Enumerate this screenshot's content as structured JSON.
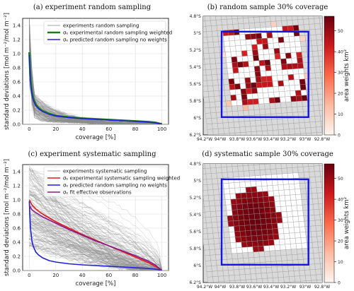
{
  "panels": {
    "a": {
      "title": "(a) experiment random sampling",
      "xlabel": "coverage [%]",
      "ylabel": "standard deviations [mol m⁻²/mol m⁻²]",
      "xticks": [
        "0",
        "20",
        "40",
        "60",
        "80",
        "100"
      ],
      "yticks": [
        "0.0",
        "0.2",
        "0.4",
        "0.6",
        "0.8",
        "1.0",
        "1.2",
        "1.4"
      ],
      "legend": [
        "experiments random sampling",
        "σₑ experimental random sampling weighted",
        "σₑ predicted random sampling no weights"
      ]
    },
    "b": {
      "title": "(b) random sample 30% coverage",
      "xticks": [
        "94.2°W",
        "94°W",
        "93.8°W",
        "93.6°W",
        "93.4°W",
        "93.2°W",
        "93°W",
        "92.8°W"
      ],
      "yticks": [
        "4.8°S",
        "5°S",
        "5.2°S",
        "5.4°S",
        "5.6°S",
        "5.8°S",
        "6°S",
        "6.2°S"
      ],
      "colorbar_label": "area weights km²",
      "colorbar_ticks": [
        "0",
        "10",
        "20",
        "30",
        "40",
        "50"
      ]
    },
    "c": {
      "title": "(c) experiment systematic sampling",
      "xlabel": "coverage [%]",
      "ylabel": "standard deviations [mol m⁻²/mol m⁻²]",
      "xticks": [
        "0",
        "20",
        "40",
        "60",
        "80",
        "100"
      ],
      "yticks": [
        "0.0",
        "0.2",
        "0.4",
        "0.6",
        "0.8",
        "1.0",
        "1.2",
        "1.4"
      ],
      "legend": [
        "experiments systematic sampling",
        "σₑ experimental systematic sampling weighted",
        "σₑ predicted random sampling no weights",
        "σₑ fit effective observations"
      ]
    },
    "d": {
      "title": "(d) systematic sample 30% coverage",
      "xticks": [
        "94.2°W",
        "94°W",
        "93.8°W",
        "93.6°W",
        "93.4°W",
        "93.2°W",
        "93°W",
        "92.8°W"
      ],
      "yticks": [
        "4.8°S",
        "5°S",
        "5.2°S",
        "5.4°S",
        "5.6°S",
        "5.8°S",
        "6°S",
        "6.2°S"
      ],
      "colorbar_label": "area weights km²",
      "colorbar_ticks": [
        "0",
        "10",
        "20",
        "30",
        "40",
        "50"
      ]
    }
  },
  "colors": {
    "experiments": "#8c8c8c",
    "weighted_random": "#1f7a1f",
    "weighted_systematic": "#e41a1c",
    "predicted": "#1f1fe0",
    "fit": "#8b1a8b",
    "study_area": "#1414e6",
    "grid": "#9a9a9a",
    "map_bg": "#d9d9d9"
  },
  "chart_data": [
    {
      "type": "line",
      "title": "(a) experiment random sampling",
      "xlabel": "coverage [%]",
      "ylabel": "standard deviations [mol m⁻²/mol m⁻²]",
      "xlim": [
        -5,
        105
      ],
      "ylim": [
        0,
        1.5
      ],
      "grid": true,
      "legend_position": "top-right",
      "series": [
        {
          "name": "σₑ experimental random sampling weighted",
          "x": [
            0,
            0.5,
            1,
            2,
            3,
            5,
            7,
            10,
            15,
            20,
            30,
            40,
            50,
            60,
            70,
            80,
            90,
            95,
            98,
            100
          ],
          "y": [
            1.02,
            0.8,
            0.62,
            0.45,
            0.37,
            0.28,
            0.23,
            0.19,
            0.15,
            0.12,
            0.1,
            0.085,
            0.075,
            0.065,
            0.055,
            0.045,
            0.035,
            0.025,
            0.012,
            0.0
          ]
        },
        {
          "name": "σₑ predicted random sampling no weights",
          "x": [
            0,
            0.5,
            1,
            2,
            3,
            5,
            7,
            10,
            15,
            20,
            30,
            40,
            50,
            60,
            70,
            80,
            90,
            95,
            98,
            100
          ],
          "y": [
            0.98,
            0.75,
            0.58,
            0.42,
            0.34,
            0.26,
            0.22,
            0.18,
            0.14,
            0.12,
            0.095,
            0.08,
            0.07,
            0.06,
            0.05,
            0.04,
            0.03,
            0.02,
            0.01,
            0.0
          ]
        }
      ]
    },
    {
      "type": "line",
      "title": "(c) experiment systematic sampling",
      "xlabel": "coverage [%]",
      "ylabel": "standard deviations [mol m⁻²/mol m⁻²]",
      "xlim": [
        -5,
        105
      ],
      "ylim": [
        0,
        1.5
      ],
      "grid": true,
      "legend_position": "top-right",
      "series": [
        {
          "name": "σₑ experimental systematic sampling weighted",
          "x": [
            0,
            2,
            5,
            10,
            20,
            30,
            40,
            50,
            60,
            70,
            80,
            90,
            95,
            100
          ],
          "y": [
            1.0,
            0.93,
            0.87,
            0.8,
            0.69,
            0.6,
            0.51,
            0.43,
            0.35,
            0.27,
            0.19,
            0.11,
            0.06,
            0.0
          ]
        },
        {
          "name": "σₑ predicted random sampling no weights",
          "x": [
            0,
            0.5,
            1,
            2,
            3,
            5,
            7,
            10,
            15,
            20,
            30,
            40,
            50,
            60,
            70,
            80,
            90,
            95,
            98,
            100
          ],
          "y": [
            0.98,
            0.75,
            0.58,
            0.42,
            0.34,
            0.26,
            0.22,
            0.18,
            0.14,
            0.12,
            0.095,
            0.08,
            0.07,
            0.06,
            0.05,
            0.04,
            0.03,
            0.02,
            0.01,
            0.0
          ]
        },
        {
          "name": "σₑ fit effective observations",
          "x": [
            0,
            2,
            5,
            10,
            20,
            30,
            40,
            50,
            60,
            70,
            80,
            90,
            95,
            100
          ],
          "y": [
            0.92,
            0.86,
            0.82,
            0.76,
            0.67,
            0.58,
            0.5,
            0.42,
            0.35,
            0.28,
            0.21,
            0.13,
            0.08,
            0.0
          ]
        }
      ]
    },
    {
      "type": "heatmap",
      "title": "(b) random sample 30% coverage",
      "colorbar_label": "area weights km²",
      "colorbar_range": [
        0,
        57
      ],
      "x_range_deg": [
        -94.2,
        -92.8
      ],
      "y_range_deg": [
        -6.2,
        -4.8
      ]
    },
    {
      "type": "heatmap",
      "title": "(d) systematic sample 30% coverage",
      "colorbar_label": "area weights km²",
      "colorbar_range": [
        0,
        57
      ],
      "x_range_deg": [
        -94.2,
        -92.8
      ],
      "y_range_deg": [
        -6.2,
        -4.8
      ]
    }
  ]
}
